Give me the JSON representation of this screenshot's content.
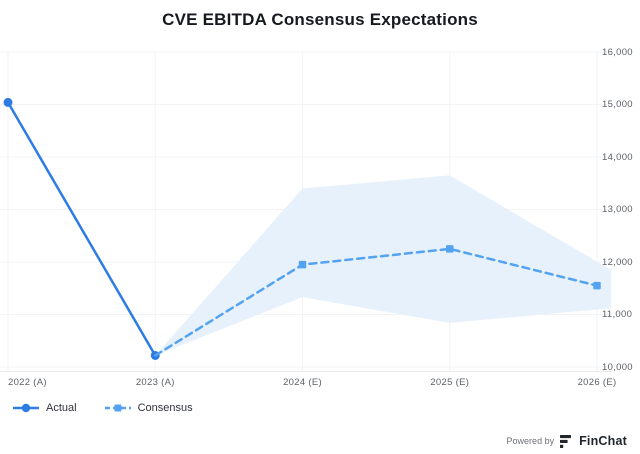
{
  "title": "CVE EBITDA Consensus Expectations",
  "colors": {
    "actual_line": "#2d7ce4",
    "consensus_line": "#54a3f0",
    "band_fill": "#e7f1fc",
    "grid_line": "#f2f3f5",
    "axis_line": "#e8eaec",
    "axis_label": "#5d6167",
    "title_text": "#16191e",
    "legend_text": "#2f3338",
    "brand_text": "#21252c"
  },
  "legend": {
    "items": [
      {
        "label": "Actual",
        "marker": "circle",
        "line": "solid"
      },
      {
        "label": "Consensus",
        "marker": "square",
        "line": "dashed"
      }
    ]
  },
  "footer": {
    "powered_by": "Powered by",
    "brand": "FinChat",
    "logo_icon": "finchat-bars-f-logo"
  },
  "chart_data": {
    "type": "line",
    "title": "CVE EBITDA Consensus Expectations",
    "categories": [
      "2022 (A)",
      "2023 (A)",
      "2024 (E)",
      "2025 (E)",
      "2026 (E)"
    ],
    "ylim": [
      10000,
      16000
    ],
    "y_ticks": [
      {
        "value": 10000,
        "label": "10,000"
      },
      {
        "value": 11000,
        "label": "11,000"
      },
      {
        "value": 12000,
        "label": "12,000"
      },
      {
        "value": 13000,
        "label": "13,000"
      },
      {
        "value": 14000,
        "label": "14,000"
      },
      {
        "value": 15000,
        "label": "15,000"
      },
      {
        "value": 16000,
        "label": "16,000"
      }
    ],
    "grid": true,
    "y_axis_side": "right",
    "legend_position": "bottom-left",
    "series": [
      {
        "name": "Actual",
        "line": "solid",
        "marker": "circle",
        "points": [
          {
            "category_index": 0,
            "value": 15040,
            "marker": true
          },
          {
            "category_index": 1,
            "value": 10220,
            "marker": true
          }
        ]
      },
      {
        "name": "Consensus",
        "line": "dashed",
        "marker": "square",
        "points": [
          {
            "category_index": 1,
            "value": 10220,
            "marker": false
          },
          {
            "category_index": 2,
            "value": 11950,
            "marker": true
          },
          {
            "category_index": 3,
            "value": 12250,
            "marker": true
          },
          {
            "category_index": 4,
            "value": 11550,
            "marker": true
          }
        ]
      }
    ],
    "band": {
      "name": "consensus-estimate-range",
      "extends_to_plot_edge": true,
      "high": [
        {
          "category_index": 1,
          "value": 10220
        },
        {
          "category_index": 2,
          "value": 13400
        },
        {
          "category_index": 3,
          "value": 13650
        },
        {
          "category_index": 4,
          "value": 11850
        }
      ],
      "low": [
        {
          "category_index": 1,
          "value": 10220
        },
        {
          "category_index": 2,
          "value": 11330
        },
        {
          "category_index": 3,
          "value": 10840
        },
        {
          "category_index": 4,
          "value": 11120
        }
      ]
    }
  }
}
